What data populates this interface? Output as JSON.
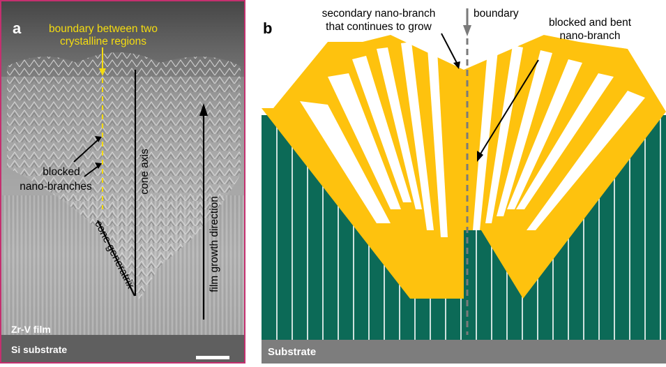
{
  "panel_a": {
    "letter": "a",
    "boundary_label_line1": "boundary between two",
    "boundary_label_line2": "crystalline regions",
    "blocked_label_line1": "blocked",
    "blocked_label_line2": "nano-branches",
    "cone_axis_label": "cone axis",
    "cone_generatrix_label": "cone generatrix",
    "growth_direction_label": "film growth direction",
    "film_label": "Zr-V film",
    "substrate_label": "Si substrate",
    "colors": {
      "frame": "#c4306f",
      "annotation_yellow": "#f5dc10",
      "text_white": "#ffffff"
    }
  },
  "panel_b": {
    "letter": "b",
    "secondary_label_line1": "secondary nano-branch",
    "secondary_label_line2": "that continues to grow",
    "boundary_label": "boundary",
    "bent_label_line1": "blocked and bent",
    "bent_label_line2": "nano-branch",
    "substrate_label": "Substrate",
    "colors": {
      "branch": "#fec20e",
      "column": "#0c6a57",
      "substrate": "#7d7d7d",
      "boundary": "#7a7a7a"
    }
  }
}
